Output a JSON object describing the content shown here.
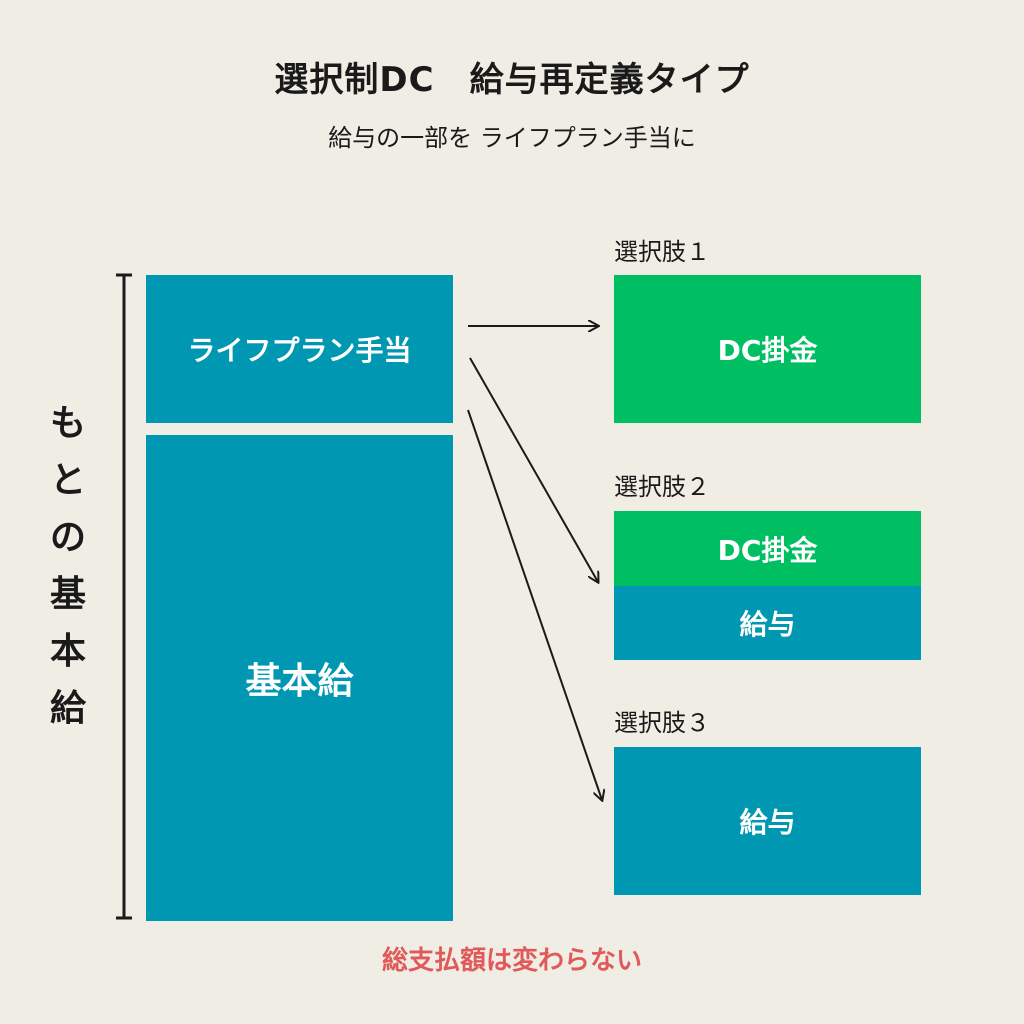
{
  "header": {
    "title": "選択制DC　給与再定義タイプ",
    "subtitle": "給与の一部を ライフプラン手当に"
  },
  "original_salary": {
    "label_chars": [
      "も",
      "と",
      "の",
      "基",
      "本",
      "給"
    ],
    "allowance_label": "ライフプラン手当",
    "base_label": "基本給"
  },
  "options": [
    {
      "label": "選択肢１",
      "segments": [
        {
          "text": "DC掛金",
          "kind": "dc"
        }
      ]
    },
    {
      "label": "選択肢２",
      "segments": [
        {
          "text": "DC掛金",
          "kind": "dc"
        },
        {
          "text": "給与",
          "kind": "salary"
        }
      ]
    },
    {
      "label": "選択肢３",
      "segments": [
        {
          "text": "給与",
          "kind": "salary"
        }
      ]
    }
  ],
  "note": "総支払額は変わらない",
  "colors": {
    "background": "#efede4",
    "teal": "#0097b2",
    "green": "#00bf63",
    "note": "#e05a5a",
    "text": "#1a1a1a"
  }
}
